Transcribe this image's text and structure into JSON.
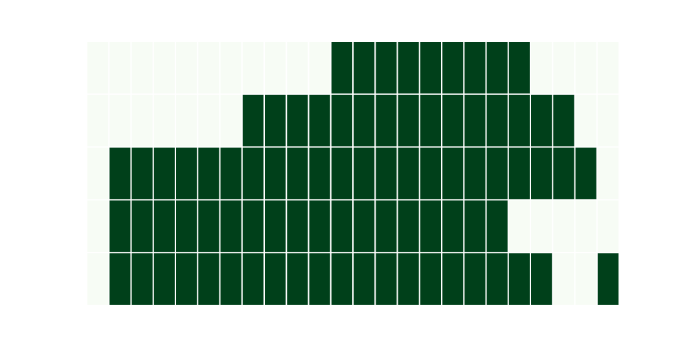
{
  "chart_data": {
    "type": "heatmap",
    "title": "",
    "xlabel": "",
    "ylabel": "",
    "grid": false,
    "legend": "none",
    "rows": 5,
    "cols": 24,
    "color_on": "#00401a",
    "color_off": "#f7fcf5",
    "separator_color": "#ffffff",
    "values": [
      [
        0,
        0,
        0,
        0,
        0,
        0,
        0,
        0,
        0,
        0,
        0,
        1,
        1,
        1,
        1,
        1,
        1,
        1,
        1,
        1,
        0,
        0,
        0,
        0
      ],
      [
        0,
        0,
        0,
        0,
        0,
        0,
        0,
        1,
        1,
        1,
        1,
        1,
        1,
        1,
        1,
        1,
        1,
        1,
        1,
        1,
        1,
        1,
        0,
        0
      ],
      [
        0,
        1,
        1,
        1,
        1,
        1,
        1,
        1,
        1,
        1,
        1,
        1,
        1,
        1,
        1,
        1,
        1,
        1,
        1,
        1,
        1,
        1,
        1,
        0
      ],
      [
        0,
        1,
        1,
        1,
        1,
        1,
        1,
        1,
        1,
        1,
        1,
        1,
        1,
        1,
        1,
        1,
        1,
        1,
        1,
        0,
        0,
        0,
        0,
        0
      ],
      [
        0,
        1,
        1,
        1,
        1,
        1,
        1,
        1,
        1,
        1,
        1,
        1,
        1,
        1,
        1,
        1,
        1,
        1,
        1,
        1,
        1,
        0,
        0,
        1
      ]
    ]
  }
}
